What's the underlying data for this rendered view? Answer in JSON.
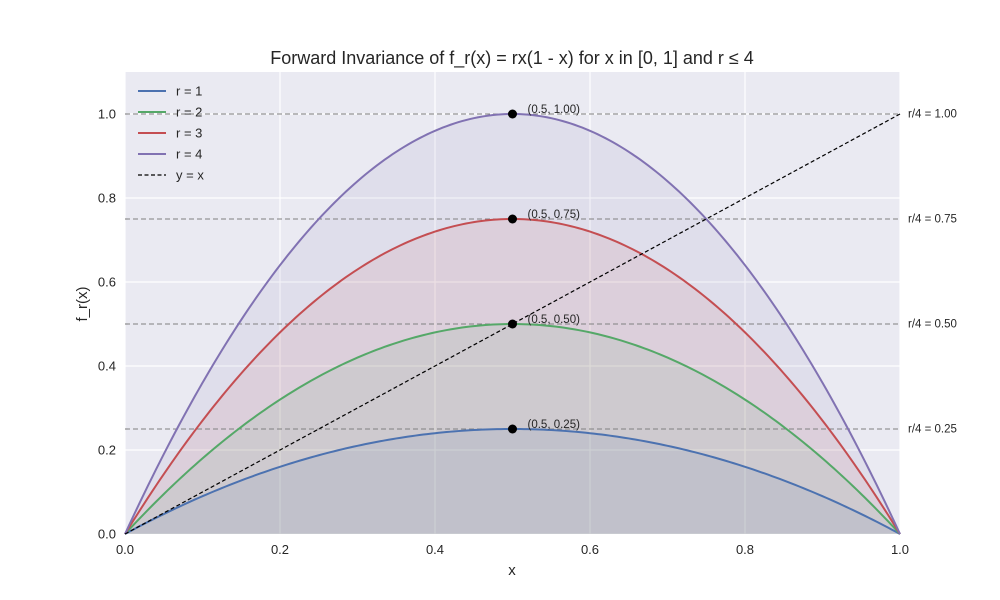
{
  "chart_data": {
    "type": "line",
    "title": "Forward Invariance of f_r(x) = rx(1 - x) for x in [0, 1] and r ≤ 4",
    "xlabel": "x",
    "ylabel": "f_r(x)",
    "xlim": [
      0,
      1
    ],
    "ylim": [
      0,
      1.1
    ],
    "xticks": [
      "0.0",
      "0.2",
      "0.4",
      "0.6",
      "0.8",
      "1.0"
    ],
    "yticks": [
      "0.0",
      "0.2",
      "0.4",
      "0.6",
      "0.8",
      "1.0"
    ],
    "grid": true,
    "legend_position": "top-left",
    "series": [
      {
        "name": "r = 1",
        "r": 1,
        "color": "#4c72b0",
        "fill": true
      },
      {
        "name": "r = 2",
        "r": 2,
        "color": "#55a868",
        "fill": true
      },
      {
        "name": "r = 3",
        "r": 3,
        "color": "#c44e52",
        "fill": true
      },
      {
        "name": "r = 4",
        "r": 4,
        "color": "#8172b2",
        "fill": true
      },
      {
        "name": "y = x",
        "color": "#000000",
        "dashed": true,
        "x": [
          0,
          1
        ],
        "y": [
          0,
          1
        ]
      }
    ],
    "maxima": [
      {
        "x": 0.5,
        "y": 0.25,
        "label": "(0.5, 0.25)"
      },
      {
        "x": 0.5,
        "y": 0.5,
        "label": "(0.5, 0.50)"
      },
      {
        "x": 0.5,
        "y": 0.75,
        "label": "(0.5, 0.75)"
      },
      {
        "x": 0.5,
        "y": 1.0,
        "label": "(0.5, 1.00)"
      }
    ],
    "reference_lines": [
      {
        "y": 0.25,
        "label": "r/4 = 0.25"
      },
      {
        "y": 0.5,
        "label": "r/4 = 0.50"
      },
      {
        "y": 0.75,
        "label": "r/4 = 0.75"
      },
      {
        "y": 1.0,
        "label": "r/4 = 1.00"
      }
    ],
    "colors": {
      "plot_background": "#eaeaf2",
      "grid": "#ffffff",
      "reference": "#808080"
    }
  }
}
